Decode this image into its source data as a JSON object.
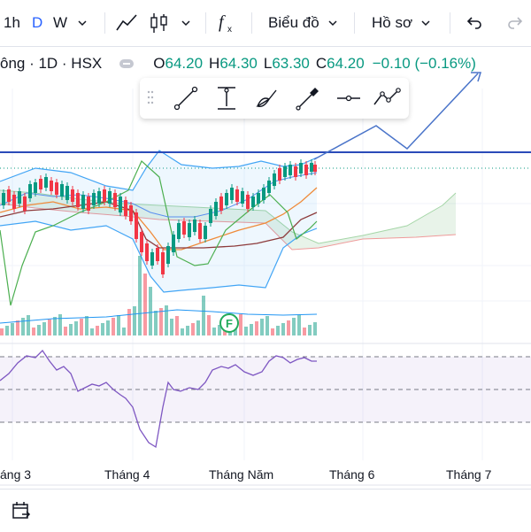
{
  "toolbar": {
    "interval_1h": "1h",
    "interval_1d": "D",
    "interval_1w": "W",
    "chart_type_label": "Biểu đồ",
    "profile_label": "Hồ sơ"
  },
  "legend": {
    "symbol": "ông · 1D · HSX",
    "open_label": "O",
    "open_value": "64.20",
    "high_label": "H",
    "high_value": "64.30",
    "low_label": "L",
    "low_value": "63.30",
    "close_label": "C",
    "close_value": "64.20",
    "change": "−0.10 (−0.16%)"
  },
  "x_axis": {
    "labels": [
      "áng 3",
      "Tháng 4",
      "Tháng Năm",
      "Tháng 6",
      "Tháng 7"
    ]
  },
  "volume_marker": "F",
  "colors": {
    "up": "#089981",
    "down": "#f23645",
    "accent": "#2962ff",
    "horizontal_line": "#2a4bb8",
    "rsi_line": "#7e57c2"
  },
  "drawing_tools": [
    "trend-line-icon",
    "measure-icon",
    "brush-icon",
    "marker-icon",
    "horizontal-line-icon",
    "path-icon"
  ]
}
